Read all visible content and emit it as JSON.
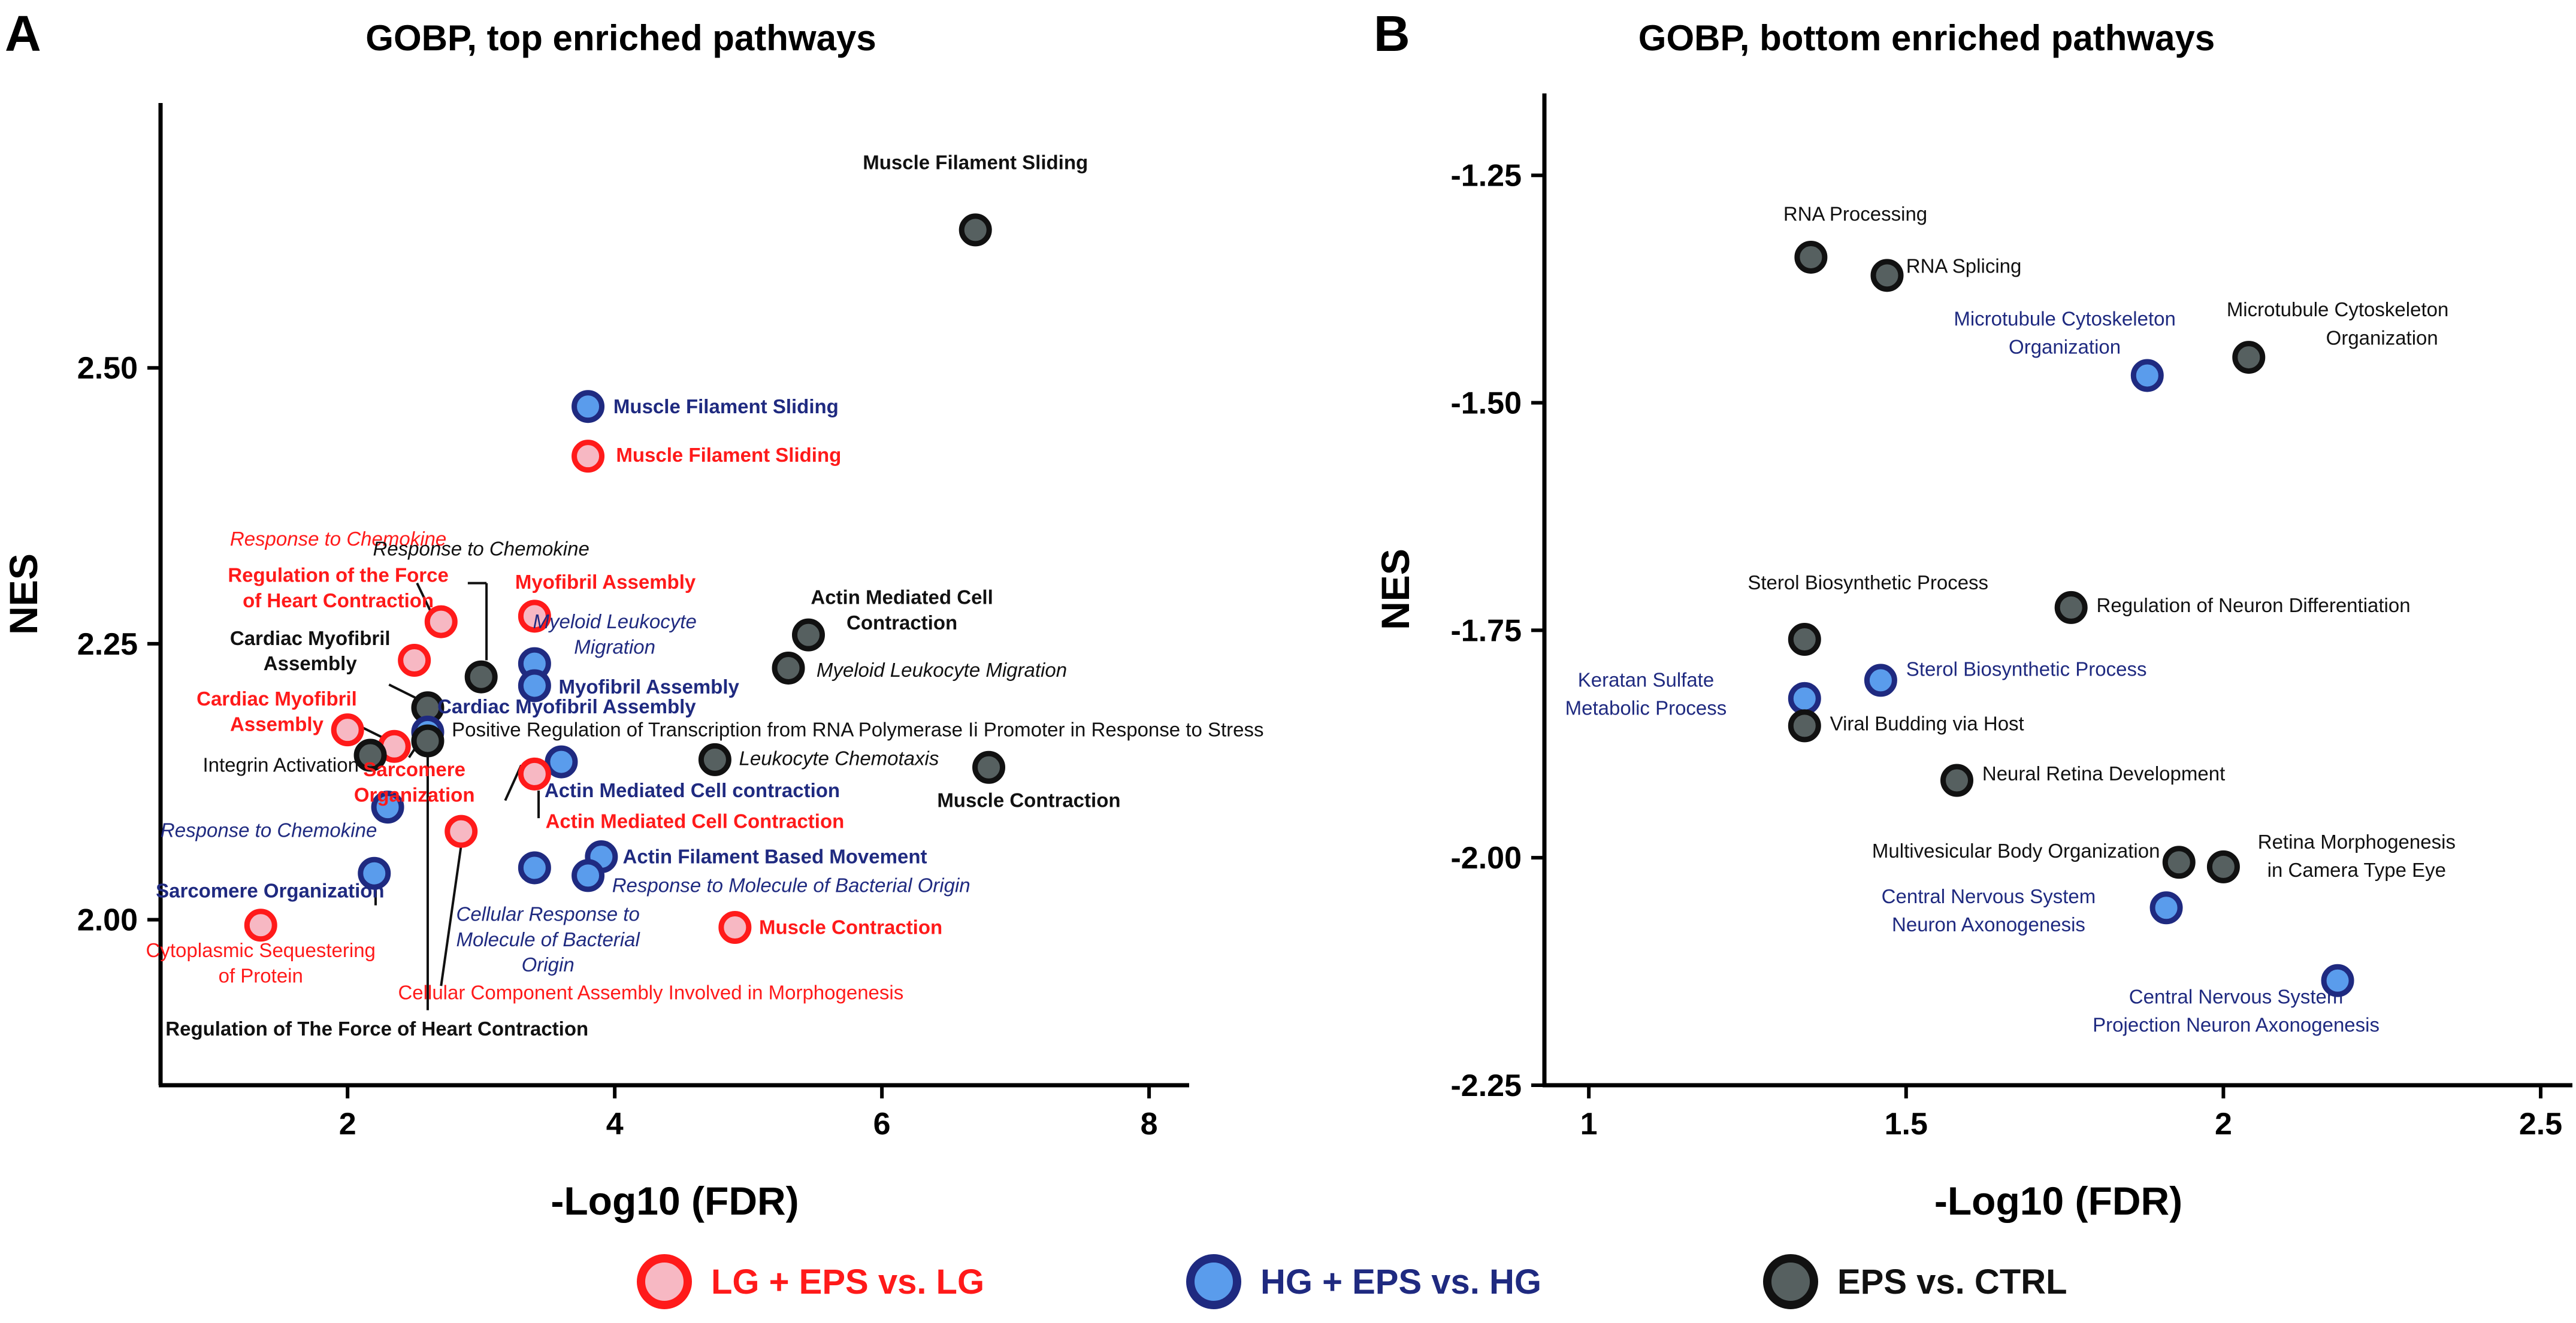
{
  "colors": {
    "red": "#ff1a1a",
    "red_fill": "#f7b8c3",
    "blue": "#1f2a80",
    "blue_fill": "#5a9cec",
    "black": "#111111",
    "black_fill": "#566060",
    "axis": "#000000"
  },
  "legend": [
    {
      "label": "LG + EPS vs. LG",
      "group": "red"
    },
    {
      "label": "HG + EPS vs. HG",
      "group": "blue"
    },
    {
      "label": "EPS vs. CTRL",
      "group": "black"
    }
  ],
  "chart_data": [
    {
      "type": "scatter",
      "panel": "A",
      "title": "GOBP, top enriched pathways",
      "xlabel": "-Log10 (FDR)",
      "ylabel": "NES",
      "xlim": [
        0.6,
        8.3
      ],
      "ylim": [
        1.85,
        2.74
      ],
      "xticks": [
        2,
        4,
        6,
        8
      ],
      "yticks": [
        2.0,
        2.25,
        2.5
      ],
      "ytick_labels": [
        "2.00",
        "2.25",
        "2.50"
      ],
      "points": [
        {
          "x": 6.7,
          "y": 2.625,
          "group": "black"
        },
        {
          "x": 3.8,
          "y": 2.465,
          "group": "blue"
        },
        {
          "x": 3.8,
          "y": 2.42,
          "group": "red"
        },
        {
          "x": 2.7,
          "y": 2.27,
          "group": "red"
        },
        {
          "x": 2.5,
          "y": 2.235,
          "group": "red"
        },
        {
          "x": 3.0,
          "y": 2.22,
          "group": "black"
        },
        {
          "x": 3.4,
          "y": 2.275,
          "group": "red"
        },
        {
          "x": 3.4,
          "y": 2.232,
          "group": "blue"
        },
        {
          "x": 3.4,
          "y": 2.212,
          "group": "blue"
        },
        {
          "x": 5.45,
          "y": 2.258,
          "group": "black"
        },
        {
          "x": 5.3,
          "y": 2.228,
          "group": "black"
        },
        {
          "x": 2.6,
          "y": 2.192,
          "group": "black"
        },
        {
          "x": 2.0,
          "y": 2.172,
          "group": "red"
        },
        {
          "x": 2.6,
          "y": 2.17,
          "group": "blue"
        },
        {
          "x": 2.6,
          "y": 2.162,
          "group": "black"
        },
        {
          "x": 2.35,
          "y": 2.157,
          "group": "red"
        },
        {
          "x": 2.17,
          "y": 2.149,
          "group": "black"
        },
        {
          "x": 3.6,
          "y": 2.143,
          "group": "blue"
        },
        {
          "x": 3.4,
          "y": 2.132,
          "group": "red"
        },
        {
          "x": 4.75,
          "y": 2.145,
          "group": "black"
        },
        {
          "x": 6.8,
          "y": 2.138,
          "group": "black"
        },
        {
          "x": 2.3,
          "y": 2.102,
          "group": "blue"
        },
        {
          "x": 2.85,
          "y": 2.08,
          "group": "red"
        },
        {
          "x": 2.2,
          "y": 2.042,
          "group": "blue"
        },
        {
          "x": 3.4,
          "y": 2.047,
          "group": "blue"
        },
        {
          "x": 3.9,
          "y": 2.057,
          "group": "blue"
        },
        {
          "x": 3.8,
          "y": 2.04,
          "group": "blue"
        },
        {
          "x": 1.35,
          "y": 1.995,
          "group": "red"
        },
        {
          "x": 4.9,
          "y": 1.993,
          "group": "red"
        }
      ],
      "annotations": [
        {
          "text": "Muscle Filament Sliding",
          "group": "black",
          "bold": true,
          "italic": false,
          "x": 6.7,
          "y": 2.68,
          "anchor": "middle"
        },
        {
          "text": "Muscle Filament Sliding",
          "group": "blue",
          "bold": true,
          "italic": false,
          "x": 3.99,
          "y": 2.459,
          "anchor": "start"
        },
        {
          "text": "Muscle Filament Sliding",
          "group": "red",
          "bold": true,
          "italic": false,
          "x": 4.01,
          "y": 2.415,
          "anchor": "start"
        },
        {
          "text": "Response to Chemokine",
          "group": "red",
          "bold": false,
          "italic": true,
          "x": 1.93,
          "y": 2.339,
          "anchor": "middle"
        },
        {
          "text": "Regulation of the Force",
          "group": "red",
          "bold": true,
          "italic": false,
          "x": 1.93,
          "y": 2.306,
          "anchor": "middle"
        },
        {
          "text": "of Heart Contraction",
          "group": "red",
          "bold": true,
          "italic": false,
          "x": 1.93,
          "y": 2.283,
          "anchor": "middle"
        },
        {
          "text": "Response to Chemokine",
          "group": "black",
          "bold": false,
          "italic": true,
          "x": 3.0,
          "y": 2.33,
          "anchor": "middle"
        },
        {
          "text": "Myofibril Assembly",
          "group": "red",
          "bold": true,
          "italic": false,
          "x": 3.93,
          "y": 2.3,
          "anchor": "middle"
        },
        {
          "text": "Myeloid Leukocyte",
          "group": "blue",
          "bold": false,
          "italic": true,
          "x": 4.0,
          "y": 2.264,
          "anchor": "middle"
        },
        {
          "text": "Migration",
          "group": "blue",
          "bold": false,
          "italic": true,
          "x": 4.0,
          "y": 2.241,
          "anchor": "middle"
        },
        {
          "text": "Actin Mediated Cell",
          "group": "black",
          "bold": true,
          "italic": false,
          "x": 6.15,
          "y": 2.286,
          "anchor": "middle"
        },
        {
          "text": "Contraction",
          "group": "black",
          "bold": true,
          "italic": false,
          "x": 6.15,
          "y": 2.263,
          "anchor": "middle"
        },
        {
          "text": "Myeloid Leukocyte Migration",
          "group": "black",
          "bold": false,
          "italic": true,
          "x": 5.51,
          "y": 2.22,
          "anchor": "start"
        },
        {
          "text": "Myofibril Assembly",
          "group": "blue",
          "bold": true,
          "italic": false,
          "x": 3.58,
          "y": 2.205,
          "anchor": "start"
        },
        {
          "text": "Cardiac Myofibril",
          "group": "black",
          "bold": true,
          "italic": false,
          "x": 1.72,
          "y": 2.249,
          "anchor": "middle"
        },
        {
          "text": "Assembly",
          "group": "black",
          "bold": true,
          "italic": false,
          "x": 1.72,
          "y": 2.226,
          "anchor": "middle"
        },
        {
          "text": "Cardiac Myofibril",
          "group": "red",
          "bold": true,
          "italic": false,
          "x": 1.47,
          "y": 2.194,
          "anchor": "middle"
        },
        {
          "text": "Assembly",
          "group": "red",
          "bold": true,
          "italic": false,
          "x": 1.47,
          "y": 2.171,
          "anchor": "middle"
        },
        {
          "text": "Cardiac Myofibril Assembly",
          "group": "blue",
          "bold": true,
          "italic": false,
          "x": 3.64,
          "y": 2.187,
          "anchor": "middle"
        },
        {
          "text": "Positive Regulation of Transcription from RNA Polymerase Ii Promoter in Response to Stress",
          "group": "black",
          "bold": false,
          "italic": false,
          "x": 2.78,
          "y": 2.166,
          "anchor": "start"
        },
        {
          "text": "Integrin Activation",
          "group": "black",
          "bold": false,
          "italic": false,
          "x": 1.5,
          "y": 2.134,
          "anchor": "middle"
        },
        {
          "text": "Leukocyte Chemotaxis",
          "group": "black",
          "bold": false,
          "italic": true,
          "x": 4.93,
          "y": 2.14,
          "anchor": "start"
        },
        {
          "text": "Sarcomere",
          "group": "red",
          "bold": true,
          "italic": false,
          "x": 2.5,
          "y": 2.13,
          "anchor": "middle"
        },
        {
          "text": "Organization",
          "group": "red",
          "bold": true,
          "italic": false,
          "x": 2.5,
          "y": 2.107,
          "anchor": "middle"
        },
        {
          "text": "Actin Mediated Cell contraction",
          "group": "blue",
          "bold": true,
          "italic": false,
          "x": 4.58,
          "y": 2.111,
          "anchor": "middle"
        },
        {
          "text": "Muscle Contraction",
          "group": "black",
          "bold": true,
          "italic": false,
          "x": 7.1,
          "y": 2.102,
          "anchor": "middle"
        },
        {
          "text": "Actin Mediated Cell Contraction",
          "group": "red",
          "bold": true,
          "italic": false,
          "x": 4.6,
          "y": 2.083,
          "anchor": "middle"
        },
        {
          "text": "Response to Chemokine",
          "group": "blue",
          "bold": false,
          "italic": true,
          "x": 1.41,
          "y": 2.075,
          "anchor": "middle"
        },
        {
          "text": "Actin Filament Based Movement",
          "group": "blue",
          "bold": true,
          "italic": false,
          "x": 4.06,
          "y": 2.051,
          "anchor": "start"
        },
        {
          "text": "Response to Molecule of Bacterial Origin",
          "group": "blue",
          "bold": false,
          "italic": true,
          "x": 3.98,
          "y": 2.025,
          "anchor": "start"
        },
        {
          "text": "Sarcomere Organization",
          "group": "blue",
          "bold": true,
          "italic": false,
          "x": 1.42,
          "y": 2.02,
          "anchor": "middle"
        },
        {
          "text": "Cellular Response to",
          "group": "blue",
          "bold": false,
          "italic": true,
          "x": 3.5,
          "y": 1.999,
          "anchor": "middle"
        },
        {
          "text": "Molecule of Bacterial",
          "group": "blue",
          "bold": false,
          "italic": true,
          "x": 3.5,
          "y": 1.976,
          "anchor": "middle"
        },
        {
          "text": "Origin",
          "group": "blue",
          "bold": false,
          "italic": true,
          "x": 3.5,
          "y": 1.953,
          "anchor": "middle"
        },
        {
          "text": "Muscle Contraction",
          "group": "red",
          "bold": true,
          "italic": false,
          "x": 5.08,
          "y": 1.987,
          "anchor": "start"
        },
        {
          "text": "Cytoplasmic Sequestering",
          "group": "red",
          "bold": false,
          "italic": false,
          "x": 1.35,
          "y": 1.966,
          "anchor": "middle"
        },
        {
          "text": "of Protein",
          "group": "red",
          "bold": false,
          "italic": false,
          "x": 1.35,
          "y": 1.943,
          "anchor": "middle"
        },
        {
          "text": "Cellular Component Assembly Involved in Morphogenesis",
          "group": "red",
          "bold": false,
          "italic": false,
          "x": 4.27,
          "y": 1.928,
          "anchor": "middle"
        },
        {
          "text": "Regulation of The Force of Heart Contraction",
          "group": "black",
          "bold": true,
          "italic": false,
          "x": 2.22,
          "y": 1.895,
          "anchor": "middle"
        }
      ],
      "leader_lines": [
        {
          "x1": 2.9,
          "y1": 2.305,
          "x2": 3.04,
          "y2": 2.305
        },
        {
          "x1": 3.04,
          "y1": 2.305,
          "x2": 3.04,
          "y2": 2.235
        },
        {
          "x1": 2.31,
          "y1": 2.213,
          "x2": 2.56,
          "y2": 2.198
        },
        {
          "x1": 2.08,
          "y1": 2.176,
          "x2": 2.33,
          "y2": 2.161
        },
        {
          "x1": 2.6,
          "y1": 2.148,
          "x2": 2.6,
          "y2": 1.918
        },
        {
          "x1": 2.69,
          "y1": 2.262,
          "x2": 2.52,
          "y2": 2.305
        },
        {
          "x1": 3.3,
          "y1": 2.14,
          "x2": 3.18,
          "y2": 2.108
        },
        {
          "x1": 3.43,
          "y1": 2.117,
          "x2": 3.43,
          "y2": 2.092
        },
        {
          "x1": 2.85,
          "y1": 2.067,
          "x2": 2.7,
          "y2": 1.94
        },
        {
          "x1": 2.52,
          "y1": 2.158,
          "x2": 2.46,
          "y2": 2.147
        },
        {
          "x1": 2.21,
          "y1": 2.03,
          "x2": 2.21,
          "y2": 2.013
        }
      ]
    },
    {
      "type": "scatter",
      "panel": "B",
      "title": "GOBP, bottom enriched pathways",
      "xlabel": "-Log10 (FDR)",
      "ylabel": "NES",
      "xlim": [
        0.93,
        2.55
      ],
      "ylim": [
        -2.25,
        -1.16
      ],
      "xticks": [
        1,
        1.5,
        2,
        2.5
      ],
      "xtick_labels": [
        "1",
        "1.5",
        "2",
        "2.5"
      ],
      "yticks": [
        -1.25,
        -1.5,
        -1.75,
        -2.0,
        -2.25
      ],
      "ytick_labels": [
        "-1.25",
        "-1.50",
        "-1.75",
        "-2.00",
        "-2.25"
      ],
      "points": [
        {
          "x": 1.35,
          "y": -1.34,
          "group": "black"
        },
        {
          "x": 1.47,
          "y": -1.36,
          "group": "black"
        },
        {
          "x": 1.88,
          "y": -1.47,
          "group": "blue"
        },
        {
          "x": 2.04,
          "y": -1.45,
          "group": "black"
        },
        {
          "x": 1.76,
          "y": -1.725,
          "group": "black"
        },
        {
          "x": 1.34,
          "y": -1.76,
          "group": "black"
        },
        {
          "x": 1.46,
          "y": -1.805,
          "group": "blue"
        },
        {
          "x": 1.34,
          "y": -1.825,
          "group": "blue"
        },
        {
          "x": 1.34,
          "y": -1.855,
          "group": "black"
        },
        {
          "x": 1.58,
          "y": -1.915,
          "group": "black"
        },
        {
          "x": 1.93,
          "y": -2.005,
          "group": "black"
        },
        {
          "x": 2.0,
          "y": -2.01,
          "group": "black"
        },
        {
          "x": 1.91,
          "y": -2.055,
          "group": "blue"
        },
        {
          "x": 2.18,
          "y": -2.135,
          "group": "blue"
        }
      ],
      "annotations": [
        {
          "text": "RNA Processing",
          "group": "black",
          "bold": false,
          "italic": false,
          "x": 1.42,
          "y": -1.3,
          "anchor": "middle"
        },
        {
          "text": "RNA Splicing",
          "group": "black",
          "bold": false,
          "italic": false,
          "x": 1.5,
          "y": -1.357,
          "anchor": "start"
        },
        {
          "text": "Microtubule Cytoskeleton",
          "group": "black",
          "bold": false,
          "italic": false,
          "x": 2.18,
          "y": -1.405,
          "anchor": "middle"
        },
        {
          "text": "Organization",
          "group": "black",
          "bold": false,
          "italic": false,
          "x": 2.25,
          "y": -1.436,
          "anchor": "middle"
        },
        {
          "text": "Microtubule Cytoskeleton",
          "group": "blue",
          "bold": false,
          "italic": false,
          "x": 1.75,
          "y": -1.415,
          "anchor": "middle"
        },
        {
          "text": "Organization",
          "group": "blue",
          "bold": false,
          "italic": false,
          "x": 1.75,
          "y": -1.446,
          "anchor": "middle"
        },
        {
          "text": "Sterol Biosynthetic Process",
          "group": "black",
          "bold": false,
          "italic": false,
          "x": 1.44,
          "y": -1.705,
          "anchor": "middle"
        },
        {
          "text": "Regulation of Neuron Differentiation",
          "group": "black",
          "bold": false,
          "italic": false,
          "x": 1.8,
          "y": -1.73,
          "anchor": "start"
        },
        {
          "text": "Sterol Biosynthetic Process",
          "group": "blue",
          "bold": false,
          "italic": false,
          "x": 1.5,
          "y": -1.8,
          "anchor": "start"
        },
        {
          "text": "Keratan Sulfate",
          "group": "blue",
          "bold": false,
          "italic": false,
          "x": 1.09,
          "y": -1.812,
          "anchor": "middle"
        },
        {
          "text": "Metabolic Process",
          "group": "blue",
          "bold": false,
          "italic": false,
          "x": 1.09,
          "y": -1.843,
          "anchor": "middle"
        },
        {
          "text": "Viral Budding via Host",
          "group": "black",
          "bold": false,
          "italic": false,
          "x": 1.38,
          "y": -1.86,
          "anchor": "start"
        },
        {
          "text": "Neural Retina Development",
          "group": "black",
          "bold": false,
          "italic": false,
          "x": 1.62,
          "y": -1.915,
          "anchor": "start"
        },
        {
          "text": "Multivesicular Body Organization",
          "group": "black",
          "bold": false,
          "italic": false,
          "x": 1.9,
          "y": -2.0,
          "anchor": "end"
        },
        {
          "text": "Retina Morphogenesis",
          "group": "black",
          "bold": false,
          "italic": false,
          "x": 2.21,
          "y": -1.99,
          "anchor": "middle"
        },
        {
          "text": "in Camera Type Eye",
          "group": "black",
          "bold": false,
          "italic": false,
          "x": 2.21,
          "y": -2.021,
          "anchor": "middle"
        },
        {
          "text": "Central Nervous System",
          "group": "blue",
          "bold": false,
          "italic": false,
          "x": 1.63,
          "y": -2.05,
          "anchor": "middle"
        },
        {
          "text": "Neuron Axonogenesis",
          "group": "blue",
          "bold": false,
          "italic": false,
          "x": 1.63,
          "y": -2.081,
          "anchor": "middle"
        },
        {
          "text": "Central Nervous System",
          "group": "blue",
          "bold": false,
          "italic": false,
          "x": 2.02,
          "y": -2.16,
          "anchor": "middle"
        },
        {
          "text": "Projection Neuron Axonogenesis",
          "group": "blue",
          "bold": false,
          "italic": false,
          "x": 2.02,
          "y": -2.191,
          "anchor": "middle"
        }
      ],
      "leader_lines": []
    }
  ],
  "panel_labels": [
    "A",
    "B"
  ]
}
